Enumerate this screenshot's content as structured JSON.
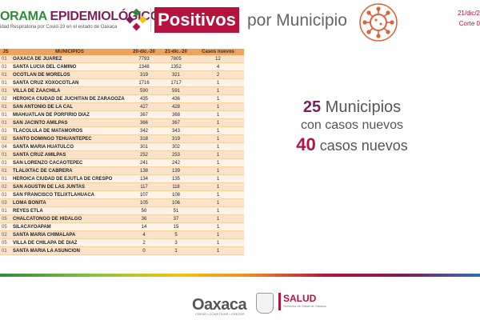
{
  "header": {
    "brand_prefix": "ORAMA",
    "brand_suffix": "EPIDEMIOLÓGICO",
    "brand_subtitle": "idad Respiratoria por Covid-19 en el estado de Oaxaca",
    "badge": "Positivos",
    "title_rest": "por Municipio",
    "date": "21/dic/2",
    "corte": "Corte 0"
  },
  "table": {
    "headers": [
      "JS",
      "MUNICIPIOS",
      "20-dic.-20",
      "21-dic.-20",
      "Casos nuevos"
    ],
    "rows": [
      {
        "js": "01",
        "municipio": "OAXACA DE JUAREZ",
        "prev": "7793",
        "curr": "7805",
        "nuevos": "12"
      },
      {
        "js": "01",
        "municipio": "SANTA LUCIA DEL CAMINO",
        "prev": "1348",
        "curr": "1352",
        "nuevos": "4"
      },
      {
        "js": "01",
        "municipio": "OCOTLAN DE MORELOS",
        "prev": "319",
        "curr": "321",
        "nuevos": "2"
      },
      {
        "js": "01",
        "municipio": "SANTA CRUZ XOXOCOTLAN",
        "prev": "1716",
        "curr": "1717",
        "nuevos": "1"
      },
      {
        "js": "01",
        "municipio": "VILLA DE ZAACHILA",
        "prev": "590",
        "curr": "591",
        "nuevos": "1"
      },
      {
        "js": "02",
        "municipio": "HEROICA CIUDAD DE JUCHITAN DE ZARAGOZA",
        "prev": "435",
        "curr": "436",
        "nuevos": "1"
      },
      {
        "js": "01",
        "municipio": "SAN ANTONIO DE LA CAL",
        "prev": "427",
        "curr": "428",
        "nuevos": "1"
      },
      {
        "js": "01",
        "municipio": "MIAHUATLAN DE PORFIRIO DIAZ",
        "prev": "367",
        "curr": "368",
        "nuevos": "1"
      },
      {
        "js": "01",
        "municipio": "SAN JACINTO AMILPAS",
        "prev": "366",
        "curr": "367",
        "nuevos": "1"
      },
      {
        "js": "01",
        "municipio": "TLACOLULA DE MATAMOROS",
        "prev": "342",
        "curr": "343",
        "nuevos": "1"
      },
      {
        "js": "02",
        "municipio": "SANTO DOMINGO TEHUANTEPEC",
        "prev": "318",
        "curr": "319",
        "nuevos": "1"
      },
      {
        "js": "04",
        "municipio": "SANTA MARIA HUATULCO",
        "prev": "301",
        "curr": "302",
        "nuevos": "1"
      },
      {
        "js": "01",
        "municipio": "SANTA CRUZ AMILPAS",
        "prev": "252",
        "curr": "253",
        "nuevos": "1"
      },
      {
        "js": "01",
        "municipio": "SAN LORENZO CACAOTEPEC",
        "prev": "241",
        "curr": "242",
        "nuevos": "1"
      },
      {
        "js": "01",
        "municipio": "TLALIXTAC DE CABRERA",
        "prev": "138",
        "curr": "139",
        "nuevos": "1"
      },
      {
        "js": "01",
        "municipio": "HEROICA CIUDAD DE EJUTLA DE CRESPO",
        "prev": "134",
        "curr": "135",
        "nuevos": "1"
      },
      {
        "js": "02",
        "municipio": "SAN AGUSTIN DE LAS JUNTAS",
        "prev": "117",
        "curr": "118",
        "nuevos": "1"
      },
      {
        "js": "01",
        "municipio": "SAN FRANCISCO TELIXTLAHUACA",
        "prev": "107",
        "curr": "108",
        "nuevos": "1"
      },
      {
        "js": "03",
        "municipio": "LOMA BONITA",
        "prev": "105",
        "curr": "106",
        "nuevos": "1"
      },
      {
        "js": "01",
        "municipio": "REYES ETLA",
        "prev": "50",
        "curr": "51",
        "nuevos": "1"
      },
      {
        "js": "05",
        "municipio": "CHALCATONGO DE HIDALGO",
        "prev": "36",
        "curr": "37",
        "nuevos": "1"
      },
      {
        "js": "05",
        "municipio": "SILACAYOAPAM",
        "prev": "14",
        "curr": "15",
        "nuevos": "1"
      },
      {
        "js": "02",
        "municipio": "SANTA MARIA CHIMALAPA",
        "prev": "4",
        "curr": "5",
        "nuevos": "1"
      },
      {
        "js": "05",
        "municipio": "VILLA DE CHILAPA DE DIAZ",
        "prev": "2",
        "curr": "3",
        "nuevos": "1"
      },
      {
        "js": "01",
        "municipio": "SANTA MARIA LA ASUNCION",
        "prev": "0",
        "curr": "1",
        "nuevos": "1"
      }
    ]
  },
  "summary": {
    "num_municipios": "25",
    "municipios_label": "Municipios",
    "line2": "con casos nuevos",
    "num_casos": "40",
    "casos_label": "casos nuevos"
  },
  "footer": {
    "oaxaca_logo_text": "Oaxaca",
    "oaxaca_tagline": "CREAR • CONSTRUIR • CRECER",
    "salud_label": "SALUD",
    "salud_sub": "Servicios de Salud de Oaxaca"
  },
  "colors": {
    "brand_magenta": "#b5123d",
    "brand_purple": "#7b1e5a",
    "brand_green": "#2e8b3a",
    "table_header": "#f0a25a",
    "row_odd": "#fbe3c9",
    "row_even": "#fef3e6"
  }
}
